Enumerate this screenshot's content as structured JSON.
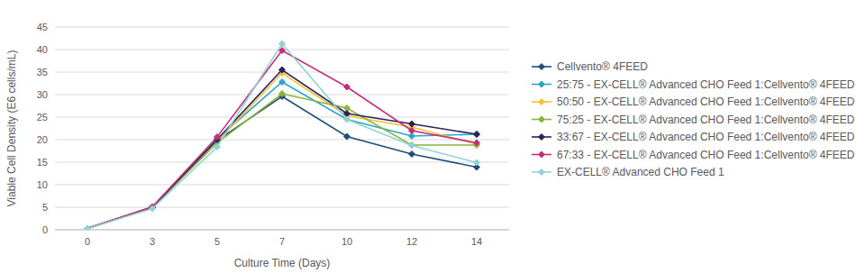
{
  "chart_data": {
    "type": "line",
    "x_label": "Culture Time (Days)",
    "y_label": "Viable Cell Density (E6 cells/mL)",
    "categories": [
      "0",
      "3",
      "5",
      "7",
      "10",
      "12",
      "14"
    ],
    "ylim": [
      0,
      45
    ],
    "yticks": [
      0,
      5,
      10,
      15,
      20,
      25,
      30,
      35,
      40,
      45
    ],
    "grid": true,
    "legend": "right",
    "marker": "diamond",
    "series": [
      {
        "name": "Cellvento® 4FEED",
        "color": "#1f4e79",
        "values": [
          0.3,
          5.0,
          19.8,
          29.6,
          20.7,
          16.8,
          13.9
        ]
      },
      {
        "name": "25:75 - EX-CELL® Advanced CHO Feed 1:Cellvento® 4FEED",
        "color": "#2ba6c8",
        "values": [
          0.3,
          4.9,
          20.2,
          32.8,
          24.5,
          20.8,
          21.2
        ]
      },
      {
        "name": "50:50 - EX-CELL® Advanced CHO Feed 1:Cellvento® 4FEED",
        "color": "#f2c230",
        "values": [
          0.3,
          5.0,
          19.5,
          34.8,
          25.3,
          22.8,
          19.0
        ]
      },
      {
        "name": "75:25 - EX-CELL® Advanced CHO Feed 1:Cellvento® 4FEED",
        "color": "#8db33a",
        "values": [
          0.3,
          5.0,
          19.3,
          30.2,
          27.0,
          18.8,
          18.8
        ]
      },
      {
        "name": "33:67 - EX-CELL® Advanced CHO Feed 1:Cellvento® 4FEED",
        "color": "#2e2160",
        "values": [
          0.3,
          5.0,
          20.0,
          35.5,
          25.8,
          23.5,
          21.2
        ]
      },
      {
        "name": "67:33 - EX-CELL® Advanced CHO Feed 1:Cellvento® 4FEED",
        "color": "#c2307c",
        "values": [
          0.3,
          5.1,
          20.6,
          39.8,
          31.7,
          22.0,
          19.3
        ]
      },
      {
        "name": "EX-CELL® Advanced CHO Feed 1",
        "color": "#8ed3d6",
        "values": [
          0.3,
          4.7,
          18.4,
          41.3,
          24.5,
          18.7,
          14.9
        ]
      }
    ]
  }
}
